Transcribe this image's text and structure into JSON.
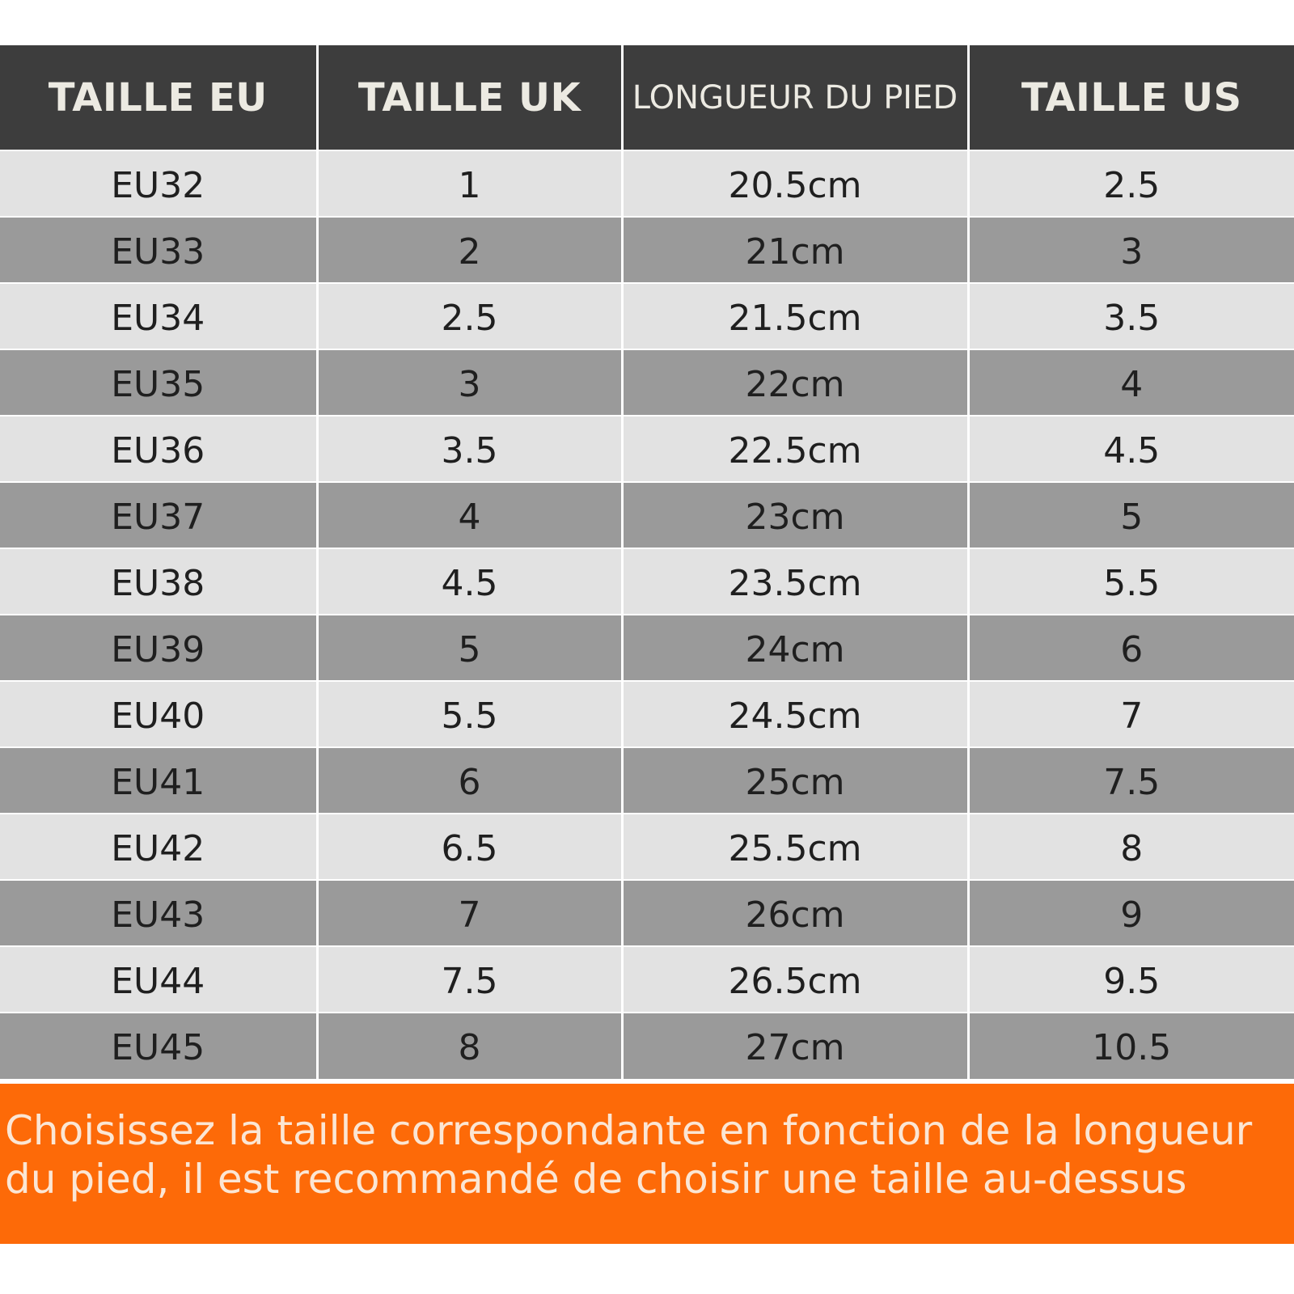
{
  "headers": {
    "eu": "TAILLE EU",
    "uk": "TAILLE UK",
    "foot": "LONGUEUR DU PIED",
    "us": "TAILLE US"
  },
  "rows": [
    {
      "eu": "EU32",
      "uk": "1",
      "foot": "20.5cm",
      "us": "2.5"
    },
    {
      "eu": "EU33",
      "uk": "2",
      "foot": "21cm",
      "us": "3"
    },
    {
      "eu": "EU34",
      "uk": "2.5",
      "foot": "21.5cm",
      "us": "3.5"
    },
    {
      "eu": "EU35",
      "uk": "3",
      "foot": "22cm",
      "us": "4"
    },
    {
      "eu": "EU36",
      "uk": "3.5",
      "foot": "22.5cm",
      "us": "4.5"
    },
    {
      "eu": "EU37",
      "uk": "4",
      "foot": "23cm",
      "us": "5"
    },
    {
      "eu": "EU38",
      "uk": "4.5",
      "foot": "23.5cm",
      "us": "5.5"
    },
    {
      "eu": "EU39",
      "uk": "5",
      "foot": "24cm",
      "us": "6"
    },
    {
      "eu": "EU40",
      "uk": "5.5",
      "foot": "24.5cm",
      "us": "7"
    },
    {
      "eu": "EU41",
      "uk": "6",
      "foot": "25cm",
      "us": "7.5"
    },
    {
      "eu": "EU42",
      "uk": "6.5",
      "foot": "25.5cm",
      "us": "8"
    },
    {
      "eu": "EU43",
      "uk": "7",
      "foot": "26cm",
      "us": "9"
    },
    {
      "eu": "EU44",
      "uk": "7.5",
      "foot": "26.5cm",
      "us": "9.5"
    },
    {
      "eu": "EU45",
      "uk": "8",
      "foot": "27cm",
      "us": "10.5"
    }
  ],
  "note": "Choisissez la taille correspondante en fonction de la longueur du pied, il est recommandé de choisir une taille au-dessus",
  "colors": {
    "header_bg": "#3d3d3d",
    "row_light": "#e2e2e2",
    "row_dark": "#9a9a9a",
    "note_bg": "#fd6a08"
  }
}
